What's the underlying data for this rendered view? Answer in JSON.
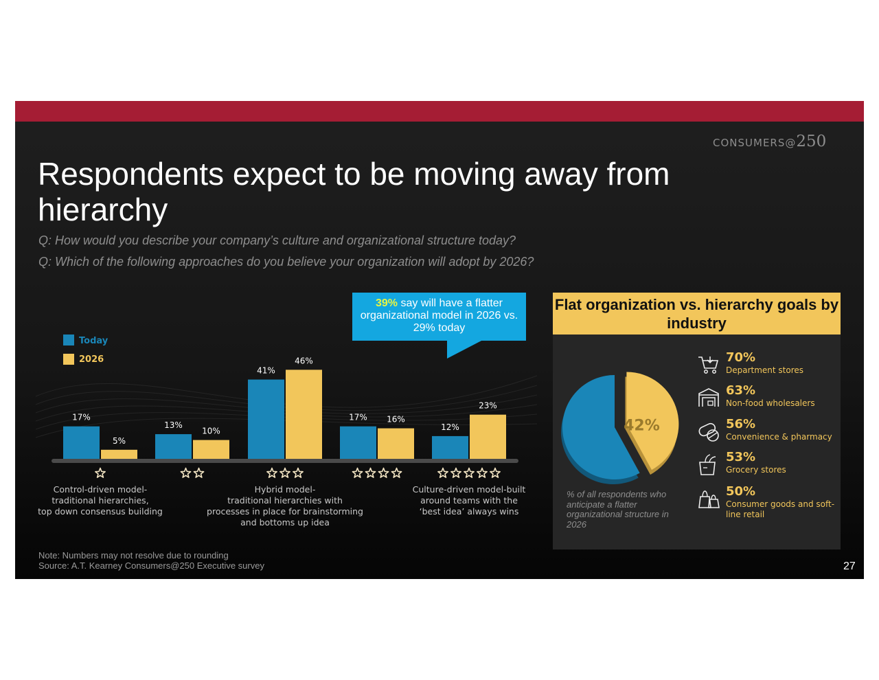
{
  "brand": {
    "text": "CONSUMERS@",
    "number": "250"
  },
  "title": "Respondents expect to be moving away from hierarchy",
  "questions": [
    "Q: How would you describe your company’s culture and organizational structure today?",
    "Q: Which of the following approaches do you believe your organization will adopt by 2026?"
  ],
  "callout": {
    "highlight": "39%",
    "text": " say will have a flatter organizational model in 2026 vs. 29% today"
  },
  "colors": {
    "today": "#1a86b8",
    "y2026": "#f2c65b",
    "brand_bar": "#a51d34",
    "callout": "#14a7e0"
  },
  "chart_data": [
    {
      "type": "bar",
      "categories": [
        "1 star",
        "2 stars",
        "3 stars",
        "4 stars",
        "5 stars"
      ],
      "series": [
        {
          "name": "Today",
          "values": [
            17,
            13,
            41,
            17,
            12
          ],
          "labels": [
            "17%",
            "13%",
            "41%",
            "17%",
            "12%"
          ]
        },
        {
          "name": "2026",
          "values": [
            5,
            10,
            46,
            16,
            23
          ],
          "labels": [
            "5%",
            "10%",
            "46%",
            "16%",
            "23%"
          ]
        }
      ],
      "stars": [
        1,
        2,
        3,
        4,
        5
      ],
      "legend_position": "top-left",
      "ylim": [
        0,
        50
      ],
      "category_descriptions": [
        {
          "position": 0,
          "lines": [
            "Control-driven model-",
            "traditional hierarchies,",
            "top down consensus building"
          ]
        },
        {
          "position": 2,
          "lines": [
            "Hybrid model-",
            "traditional hierarchies with",
            "processes in place for brainstorming",
            "and bottoms up idea"
          ]
        },
        {
          "position": 4,
          "lines": [
            "Culture-driven model-built",
            "around teams with the",
            "‘best idea’ always wins"
          ]
        }
      ]
    },
    {
      "type": "pie",
      "title": "Flat organization vs. hierarchy goals by industry",
      "slices": [
        {
          "value": 42,
          "label": "42%",
          "color": "#f2c65b"
        },
        {
          "value": 58,
          "label": "",
          "color": "#1a86b8"
        }
      ],
      "caption": "% of all respondents who anticipate  a  flatter organizational structure in 2026"
    }
  ],
  "industries": [
    {
      "pct": "70%",
      "name": "Department stores",
      "icon": "shopping-cart-icon"
    },
    {
      "pct": "63%",
      "name": "Non-food wholesalers",
      "icon": "warehouse-icon"
    },
    {
      "pct": "56%",
      "name": "Convenience & pharmacy",
      "icon": "pills-icon"
    },
    {
      "pct": "53%",
      "name": "Grocery stores",
      "icon": "grocery-bag-icon"
    },
    {
      "pct": "50%",
      "name": "Consumer goods and soft-line retail",
      "icon": "shopping-bags-icon"
    }
  ],
  "footer": {
    "note": "Note: Numbers may not resolve due to rounding",
    "source": "Source: A.T. Kearney Consumers@250 Executive survey",
    "page": "27"
  }
}
